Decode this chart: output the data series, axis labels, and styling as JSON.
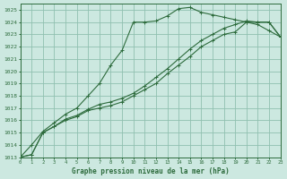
{
  "title": "Graphe pression niveau de la mer (hPa)",
  "bg_color": "#cce8e0",
  "grid_color": "#90c0b0",
  "line_color": "#2d6b3c",
  "xlim": [
    0,
    23
  ],
  "ylim": [
    1013,
    1025.5
  ],
  "yticks": [
    1013,
    1014,
    1015,
    1016,
    1017,
    1018,
    1019,
    1020,
    1021,
    1022,
    1023,
    1024,
    1025
  ],
  "xticks": [
    0,
    1,
    2,
    3,
    4,
    5,
    6,
    7,
    8,
    9,
    10,
    11,
    12,
    13,
    14,
    15,
    16,
    17,
    18,
    19,
    20,
    21,
    22,
    23
  ],
  "series": [
    {
      "x": [
        0,
        1,
        2,
        3,
        4,
        5,
        6,
        7,
        8,
        9,
        10,
        11,
        12,
        13,
        14,
        15,
        16,
        17,
        18,
        19,
        20,
        21,
        22,
        23
      ],
      "y": [
        1013.0,
        1014.0,
        1015.1,
        1015.8,
        1016.5,
        1017.0,
        1018.0,
        1019.0,
        1020.5,
        1021.7,
        1024.0,
        1024.0,
        1024.1,
        1024.5,
        1025.1,
        1025.2,
        1024.8,
        1024.6,
        1024.4,
        1024.2,
        1024.0,
        1023.8,
        1023.3,
        1022.8
      ],
      "marker": "+"
    },
    {
      "x": [
        0,
        1,
        2,
        3,
        4,
        5,
        6,
        7,
        8,
        9,
        10,
        11,
        12,
        13,
        14,
        15,
        16,
        17,
        18,
        19,
        20,
        21,
        22,
        23
      ],
      "y": [
        1013.0,
        1013.2,
        1015.0,
        1015.5,
        1016.0,
        1016.3,
        1016.8,
        1017.0,
        1017.2,
        1017.5,
        1018.0,
        1018.5,
        1019.0,
        1019.8,
        1020.5,
        1021.2,
        1022.0,
        1022.5,
        1023.0,
        1023.2,
        1024.0,
        1024.0,
        1024.0,
        1022.8
      ],
      "marker": "+"
    },
    {
      "x": [
        0,
        1,
        2,
        3,
        4,
        5,
        6,
        7,
        8,
        9,
        10,
        11,
        12,
        13,
        14,
        15,
        16,
        17,
        18,
        19,
        20,
        21,
        22,
        23
      ],
      "y": [
        1013.0,
        1013.2,
        1015.0,
        1015.5,
        1016.1,
        1016.4,
        1016.9,
        1017.3,
        1017.5,
        1017.8,
        1018.2,
        1018.8,
        1019.5,
        1020.2,
        1021.0,
        1021.8,
        1022.5,
        1023.0,
        1023.5,
        1023.8,
        1024.1,
        1024.0,
        1024.0,
        1022.8
      ],
      "marker": "+"
    }
  ]
}
